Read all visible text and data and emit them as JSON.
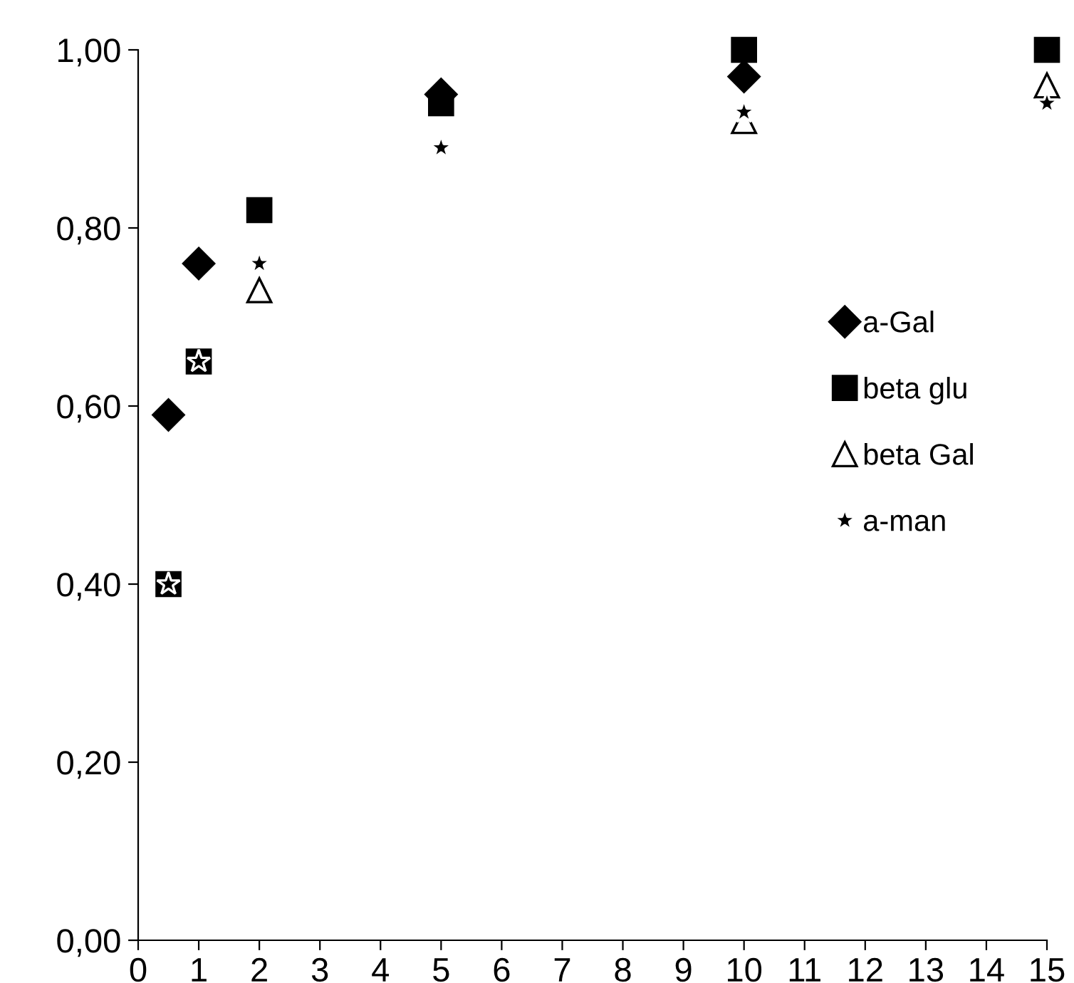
{
  "chart_data": {
    "type": "scatter",
    "x": [
      0.5,
      1,
      2,
      5,
      10,
      15
    ],
    "series": [
      {
        "name": "a-Gal",
        "color": "#000000",
        "marker": "diamond",
        "values": [
          0.59,
          0.76,
          null,
          0.95,
          0.97,
          null
        ]
      },
      {
        "name": "beta glu",
        "color": "#000000",
        "marker": "square",
        "values": [
          0.4,
          0.65,
          0.82,
          0.94,
          1.0,
          1.0
        ]
      },
      {
        "name": "beta Gal",
        "color": "#ffffff",
        "marker": "triangle",
        "values": [
          null,
          null,
          0.73,
          null,
          0.92,
          0.96
        ]
      },
      {
        "name": "a-man",
        "color": "#000000",
        "marker": "star",
        "values": [
          0.4,
          0.65,
          0.76,
          0.89,
          0.93,
          0.94
        ]
      }
    ],
    "xlim": [
      0,
      15
    ],
    "xticks": [
      0,
      1,
      2,
      3,
      4,
      5,
      6,
      7,
      8,
      9,
      10,
      11,
      12,
      13,
      14,
      15
    ],
    "ylim": [
      0,
      1
    ],
    "yticks": [
      {
        "value": 0,
        "label": "0,00"
      },
      {
        "value": 0.2,
        "label": "0,20"
      },
      {
        "value": 0.4,
        "label": "0,40"
      },
      {
        "value": 0.6,
        "label": "0,60"
      },
      {
        "value": 0.8,
        "label": "0,80"
      },
      {
        "value": 1.0,
        "label": "1,00"
      }
    ],
    "grid": false,
    "legend": "right"
  }
}
